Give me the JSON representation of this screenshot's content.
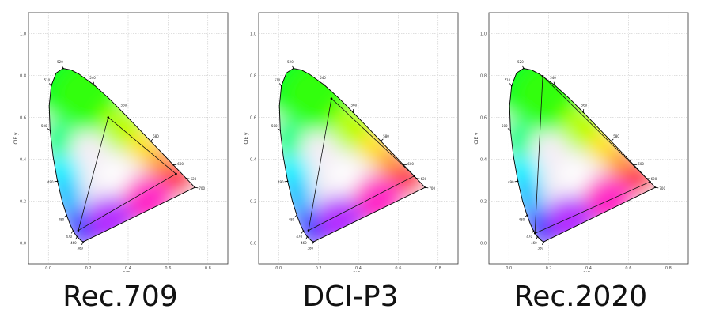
{
  "chart_data": [
    {
      "type": "chromaticity-diagram",
      "title": "Rec.709",
      "xlabel": "CIE x",
      "ylabel": "CIE y",
      "xlim": [
        -0.1,
        0.9
      ],
      "ylim": [
        -0.1,
        1.1
      ],
      "x_ticks": [
        "0.0",
        "0.2",
        "0.4",
        "0.6",
        "0.8"
      ],
      "y_ticks": [
        "0.0",
        "0.2",
        "0.4",
        "0.6",
        "0.8",
        "1.0"
      ],
      "grid": true,
      "wavelength_labels": [
        "380",
        "460",
        "470",
        "480",
        "490",
        "500",
        "510",
        "520",
        "540",
        "560",
        "580",
        "600",
        "620",
        "700"
      ],
      "gamut": [
        [
          0.64,
          0.33
        ],
        [
          0.3,
          0.6
        ],
        [
          0.15,
          0.06
        ]
      ]
    },
    {
      "type": "chromaticity-diagram",
      "title": "DCI-P3",
      "xlabel": "CIE x",
      "ylabel": "CIE y",
      "xlim": [
        -0.1,
        0.9
      ],
      "ylim": [
        -0.1,
        1.1
      ],
      "x_ticks": [
        "0.0",
        "0.2",
        "0.4",
        "0.6",
        "0.8"
      ],
      "y_ticks": [
        "0.0",
        "0.2",
        "0.4",
        "0.6",
        "0.8",
        "1.0"
      ],
      "grid": true,
      "wavelength_labels": [
        "380",
        "460",
        "470",
        "480",
        "490",
        "500",
        "510",
        "520",
        "540",
        "560",
        "580",
        "600",
        "620",
        "700"
      ],
      "gamut": [
        [
          0.68,
          0.32
        ],
        [
          0.265,
          0.69
        ],
        [
          0.15,
          0.06
        ]
      ]
    },
    {
      "type": "chromaticity-diagram",
      "title": "Rec.2020",
      "xlabel": "CIE x",
      "ylabel": "CIE y",
      "xlim": [
        -0.1,
        0.9
      ],
      "ylim": [
        -0.1,
        1.1
      ],
      "x_ticks": [
        "0.0",
        "0.2",
        "0.4",
        "0.6",
        "0.8"
      ],
      "y_ticks": [
        "0.0",
        "0.2",
        "0.4",
        "0.6",
        "0.8",
        "1.0"
      ],
      "grid": true,
      "wavelength_labels": [
        "380",
        "460",
        "470",
        "480",
        "490",
        "500",
        "510",
        "520",
        "540",
        "560",
        "580",
        "600",
        "620",
        "700"
      ],
      "gamut": [
        [
          0.708,
          0.292
        ],
        [
          0.17,
          0.797
        ],
        [
          0.131,
          0.046
        ]
      ]
    }
  ],
  "captions": [
    "Rec.709",
    "DCI-P3",
    "Rec.2020"
  ]
}
